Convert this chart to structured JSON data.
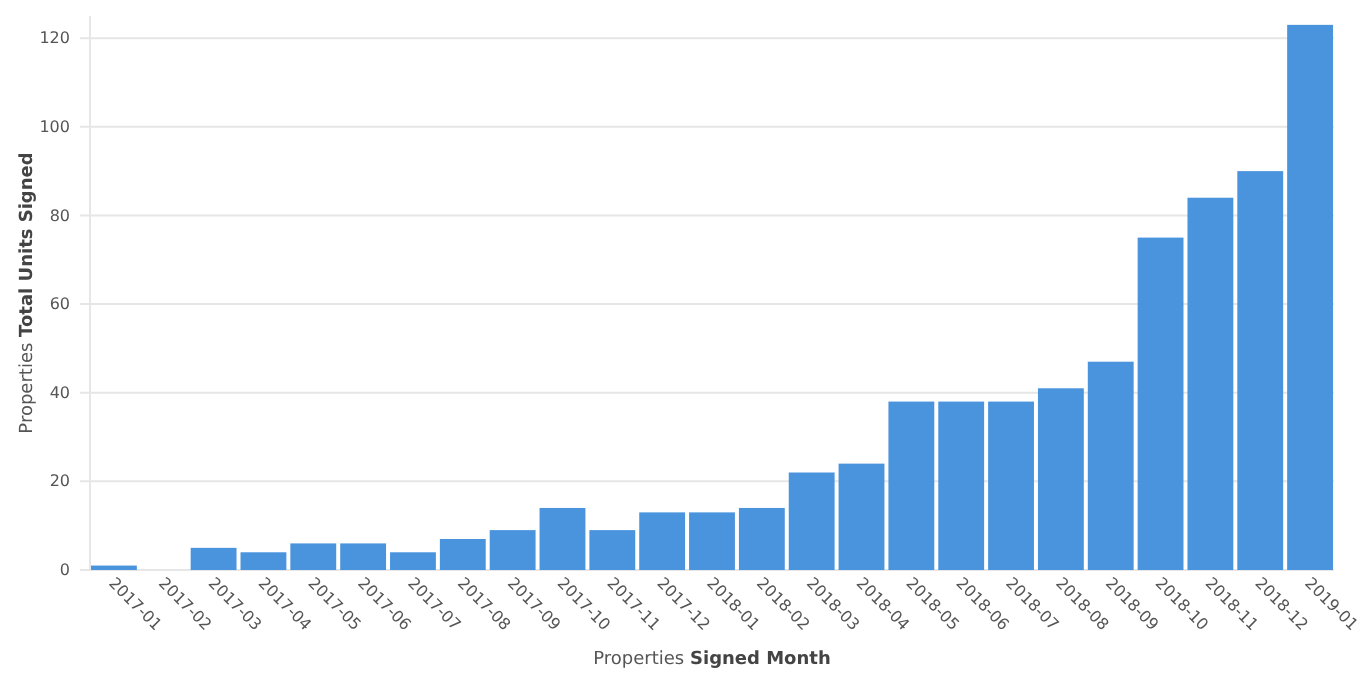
{
  "chart_data": {
    "type": "bar",
    "xlabel": "Properties Signed Month",
    "ylabel": "Properties Total Units Signed",
    "categories": [
      "2017-01",
      "2017-02",
      "2017-03",
      "2017-04",
      "2017-05",
      "2017-06",
      "2017-07",
      "2017-08",
      "2017-09",
      "2017-10",
      "2017-11",
      "2017-12",
      "2018-01",
      "2018-02",
      "2018-03",
      "2018-04",
      "2018-05",
      "2018-06",
      "2018-07",
      "2018-08",
      "2018-09",
      "2018-10",
      "2018-11",
      "2018-12",
      "2019-01"
    ],
    "values": [
      1,
      0,
      5,
      4,
      6,
      6,
      4,
      7,
      9,
      14,
      9,
      13,
      13,
      14,
      22,
      24,
      38,
      38,
      38,
      41,
      47,
      75,
      84,
      90,
      123
    ],
    "color": "#4a94dd",
    "ylim": [
      0,
      125
    ],
    "yticks": [
      0,
      20,
      40,
      60,
      80,
      100,
      120
    ],
    "grid": "y"
  }
}
